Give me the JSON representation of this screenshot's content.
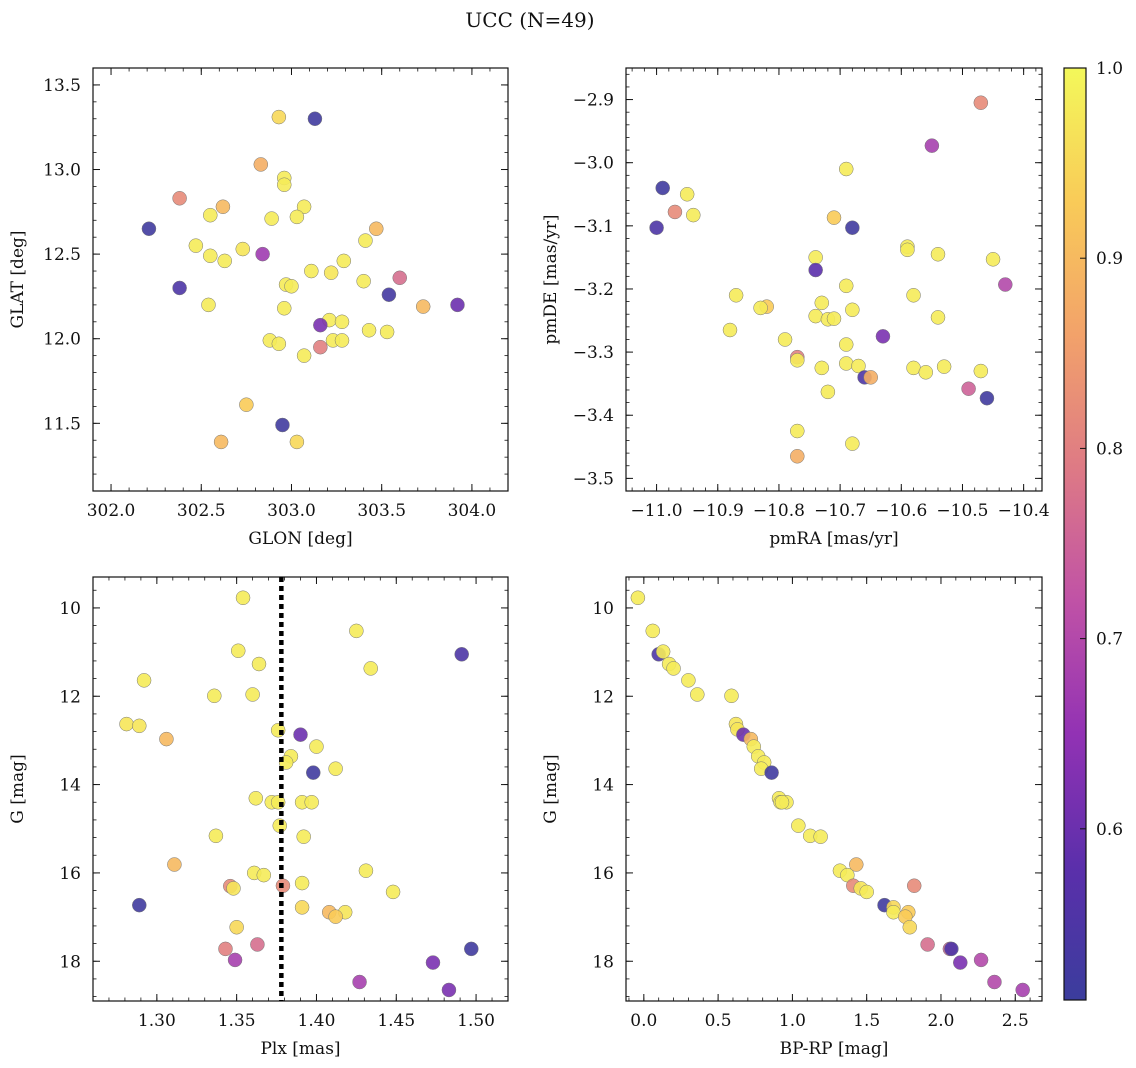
{
  "figure": {
    "title": "UCC (N=49)"
  },
  "colorbar": {
    "min": 0.51,
    "max": 1.0,
    "ticks": [
      "0.6",
      "0.7",
      "0.8",
      "0.9",
      "1.0"
    ],
    "tick_values": [
      0.6,
      0.7,
      0.8,
      0.9,
      1.0
    ],
    "colormap": "plasma",
    "colormap_stops": [
      "#3b3d9d",
      "#5b2fab",
      "#9232b4",
      "#c052a6",
      "#de7a85",
      "#f2a26a",
      "#f9cb58",
      "#f3f85a"
    ]
  },
  "chart_data": [
    {
      "type": "scatter",
      "title": "",
      "xlabel": "GLON [deg]",
      "ylabel": "GLAT [deg]",
      "xlim": [
        301.9,
        304.2
      ],
      "ylim": [
        11.1,
        13.6
      ],
      "y_inverted": false,
      "xticks": [
        302.0,
        302.5,
        303.0,
        303.5,
        304.0
      ],
      "xtick_labels": [
        "302.0",
        "302.5",
        "303.0",
        "303.5",
        "304.0"
      ],
      "yticks": [
        11.5,
        12.0,
        12.5,
        13.0,
        13.5
      ],
      "ytick_labels": [
        "11.5",
        "12.0",
        "12.5",
        "13.0",
        "13.5"
      ],
      "points": [
        {
          "x": 302.93,
          "y": 13.31,
          "c": 0.95
        },
        {
          "x": 303.13,
          "y": 13.3,
          "c": 0.52
        },
        {
          "x": 302.83,
          "y": 13.03,
          "c": 0.88
        },
        {
          "x": 302.96,
          "y": 12.95,
          "c": 0.98
        },
        {
          "x": 302.96,
          "y": 12.91,
          "c": 0.98
        },
        {
          "x": 302.38,
          "y": 12.83,
          "c": 0.82
        },
        {
          "x": 302.62,
          "y": 12.78,
          "c": 0.9
        },
        {
          "x": 303.07,
          "y": 12.78,
          "c": 0.98
        },
        {
          "x": 302.55,
          "y": 12.73,
          "c": 0.98
        },
        {
          "x": 302.89,
          "y": 12.71,
          "c": 0.98
        },
        {
          "x": 303.03,
          "y": 12.72,
          "c": 0.98
        },
        {
          "x": 302.21,
          "y": 12.65,
          "c": 0.52
        },
        {
          "x": 303.47,
          "y": 12.65,
          "c": 0.9
        },
        {
          "x": 302.47,
          "y": 12.55,
          "c": 0.98
        },
        {
          "x": 302.73,
          "y": 12.53,
          "c": 0.97
        },
        {
          "x": 303.41,
          "y": 12.58,
          "c": 0.98
        },
        {
          "x": 302.55,
          "y": 12.49,
          "c": 0.98
        },
        {
          "x": 302.63,
          "y": 12.46,
          "c": 0.98
        },
        {
          "x": 302.84,
          "y": 12.5,
          "c": 0.67
        },
        {
          "x": 303.29,
          "y": 12.46,
          "c": 0.98
        },
        {
          "x": 303.11,
          "y": 12.4,
          "c": 0.98
        },
        {
          "x": 303.22,
          "y": 12.39,
          "c": 0.97
        },
        {
          "x": 302.38,
          "y": 12.3,
          "c": 0.55
        },
        {
          "x": 302.97,
          "y": 12.32,
          "c": 0.98
        },
        {
          "x": 303.0,
          "y": 12.31,
          "c": 0.98
        },
        {
          "x": 303.4,
          "y": 12.34,
          "c": 0.98
        },
        {
          "x": 303.6,
          "y": 12.36,
          "c": 0.77
        },
        {
          "x": 303.54,
          "y": 12.26,
          "c": 0.53
        },
        {
          "x": 303.92,
          "y": 12.2,
          "c": 0.6
        },
        {
          "x": 303.73,
          "y": 12.19,
          "c": 0.9
        },
        {
          "x": 302.54,
          "y": 12.2,
          "c": 0.98
        },
        {
          "x": 302.96,
          "y": 12.18,
          "c": 0.98
        },
        {
          "x": 303.21,
          "y": 12.11,
          "c": 0.98
        },
        {
          "x": 303.16,
          "y": 12.08,
          "c": 0.62
        },
        {
          "x": 303.28,
          "y": 12.1,
          "c": 0.98
        },
        {
          "x": 303.43,
          "y": 12.05,
          "c": 0.98
        },
        {
          "x": 303.53,
          "y": 12.04,
          "c": 0.98
        },
        {
          "x": 302.88,
          "y": 11.99,
          "c": 0.98
        },
        {
          "x": 302.93,
          "y": 11.97,
          "c": 0.98
        },
        {
          "x": 303.23,
          "y": 11.99,
          "c": 0.98
        },
        {
          "x": 303.28,
          "y": 11.99,
          "c": 0.98
        },
        {
          "x": 303.16,
          "y": 11.95,
          "c": 0.8
        },
        {
          "x": 303.07,
          "y": 11.9,
          "c": 0.98
        },
        {
          "x": 302.75,
          "y": 11.61,
          "c": 0.93
        },
        {
          "x": 302.95,
          "y": 11.49,
          "c": 0.52
        },
        {
          "x": 302.61,
          "y": 11.39,
          "c": 0.9
        },
        {
          "x": 303.03,
          "y": 11.39,
          "c": 0.95
        }
      ]
    },
    {
      "type": "scatter",
      "title": "",
      "xlabel": "pmRA [mas/yr]",
      "ylabel": "pmDE [mas/yr]",
      "xlim": [
        -11.05,
        -10.37
      ],
      "ylim": [
        -3.52,
        -2.85
      ],
      "y_inverted": false,
      "xticks": [
        -11.0,
        -10.9,
        -10.8,
        -10.7,
        -10.6,
        -10.5,
        -10.4
      ],
      "xtick_labels": [
        "−11.0",
        "−10.9",
        "−10.8",
        "−10.7",
        "−10.6",
        "−10.5",
        "−10.4"
      ],
      "yticks": [
        -3.5,
        -3.4,
        -3.3,
        -3.2,
        -3.1,
        -3.0,
        -2.9
      ],
      "ytick_labels": [
        "−3.5",
        "−3.4",
        "−3.3",
        "−3.2",
        "−3.1",
        "−3.0",
        "−2.9"
      ],
      "points": [
        {
          "x": -10.47,
          "y": -2.905,
          "c": 0.82
        },
        {
          "x": -10.55,
          "y": -2.973,
          "c": 0.68
        },
        {
          "x": -10.69,
          "y": -3.01,
          "c": 0.98
        },
        {
          "x": -10.99,
          "y": -3.04,
          "c": 0.52
        },
        {
          "x": -10.95,
          "y": -3.05,
          "c": 0.98
        },
        {
          "x": -10.97,
          "y": -3.078,
          "c": 0.82
        },
        {
          "x": -10.94,
          "y": -3.083,
          "c": 0.98
        },
        {
          "x": -10.71,
          "y": -3.087,
          "c": 0.93
        },
        {
          "x": -11.0,
          "y": -3.103,
          "c": 0.55
        },
        {
          "x": -10.68,
          "y": -3.103,
          "c": 0.52
        },
        {
          "x": -10.59,
          "y": -3.133,
          "c": 0.98
        },
        {
          "x": -10.59,
          "y": -3.138,
          "c": 0.98
        },
        {
          "x": -10.54,
          "y": -3.145,
          "c": 0.98
        },
        {
          "x": -10.74,
          "y": -3.15,
          "c": 0.98
        },
        {
          "x": -10.45,
          "y": -3.153,
          "c": 0.98
        },
        {
          "x": -10.74,
          "y": -3.17,
          "c": 0.58
        },
        {
          "x": -10.43,
          "y": -3.193,
          "c": 0.7
        },
        {
          "x": -10.69,
          "y": -3.195,
          "c": 0.98
        },
        {
          "x": -10.87,
          "y": -3.21,
          "c": 0.98
        },
        {
          "x": -10.58,
          "y": -3.21,
          "c": 0.98
        },
        {
          "x": -10.73,
          "y": -3.222,
          "c": 0.98
        },
        {
          "x": -10.82,
          "y": -3.228,
          "c": 0.93
        },
        {
          "x": -10.83,
          "y": -3.23,
          "c": 0.98
        },
        {
          "x": -10.68,
          "y": -3.233,
          "c": 0.98
        },
        {
          "x": -10.74,
          "y": -3.243,
          "c": 0.98
        },
        {
          "x": -10.54,
          "y": -3.245,
          "c": 0.98
        },
        {
          "x": -10.72,
          "y": -3.248,
          "c": 0.98
        },
        {
          "x": -10.71,
          "y": -3.247,
          "c": 0.98
        },
        {
          "x": -10.88,
          "y": -3.265,
          "c": 0.98
        },
        {
          "x": -10.63,
          "y": -3.275,
          "c": 0.62
        },
        {
          "x": -10.79,
          "y": -3.28,
          "c": 0.98
        },
        {
          "x": -10.69,
          "y": -3.288,
          "c": 0.98
        },
        {
          "x": -10.77,
          "y": -3.308,
          "c": 0.8
        },
        {
          "x": -10.77,
          "y": -3.313,
          "c": 0.98
        },
        {
          "x": -10.69,
          "y": -3.318,
          "c": 0.98
        },
        {
          "x": -10.67,
          "y": -3.322,
          "c": 0.98
        },
        {
          "x": -10.73,
          "y": -3.325,
          "c": 0.98
        },
        {
          "x": -10.58,
          "y": -3.325,
          "c": 0.98
        },
        {
          "x": -10.53,
          "y": -3.323,
          "c": 0.98
        },
        {
          "x": -10.56,
          "y": -3.332,
          "c": 0.98
        },
        {
          "x": -10.47,
          "y": -3.33,
          "c": 0.98
        },
        {
          "x": -10.66,
          "y": -3.34,
          "c": 0.55
        },
        {
          "x": -10.65,
          "y": -3.34,
          "c": 0.88
        },
        {
          "x": -10.49,
          "y": -3.358,
          "c": 0.75
        },
        {
          "x": -10.72,
          "y": -3.363,
          "c": 0.98
        },
        {
          "x": -10.46,
          "y": -3.373,
          "c": 0.52
        },
        {
          "x": -10.77,
          "y": -3.425,
          "c": 0.98
        },
        {
          "x": -10.68,
          "y": -3.445,
          "c": 0.98
        },
        {
          "x": -10.77,
          "y": -3.465,
          "c": 0.88
        }
      ]
    },
    {
      "type": "scatter",
      "title": "",
      "xlabel": "Plx [mas]",
      "ylabel": "G [mag]",
      "xlim": [
        1.26,
        1.52
      ],
      "ylim": [
        9.3,
        18.9
      ],
      "y_inverted": true,
      "vline": 1.378,
      "xticks": [
        1.3,
        1.35,
        1.4,
        1.45,
        1.5
      ],
      "xtick_labels": [
        "1.30",
        "1.35",
        "1.40",
        "1.45",
        "1.50"
      ],
      "yticks": [
        10,
        12,
        14,
        16,
        18
      ],
      "ytick_labels": [
        "10",
        "12",
        "14",
        "16",
        "18"
      ],
      "points": [
        {
          "x": 1.354,
          "y": 9.77,
          "c": 0.98
        },
        {
          "x": 1.425,
          "y": 10.52,
          "c": 0.98
        },
        {
          "x": 1.351,
          "y": 10.97,
          "c": 0.98
        },
        {
          "x": 1.491,
          "y": 11.05,
          "c": 0.55
        },
        {
          "x": 1.364,
          "y": 11.27,
          "c": 0.98
        },
        {
          "x": 1.434,
          "y": 11.37,
          "c": 0.98
        },
        {
          "x": 1.292,
          "y": 11.64,
          "c": 0.98
        },
        {
          "x": 1.336,
          "y": 11.99,
          "c": 0.98
        },
        {
          "x": 1.36,
          "y": 11.96,
          "c": 0.98
        },
        {
          "x": 1.281,
          "y": 12.63,
          "c": 0.97
        },
        {
          "x": 1.289,
          "y": 12.67,
          "c": 0.97
        },
        {
          "x": 1.376,
          "y": 12.77,
          "c": 0.98
        },
        {
          "x": 1.39,
          "y": 12.87,
          "c": 0.6
        },
        {
          "x": 1.306,
          "y": 12.97,
          "c": 0.9
        },
        {
          "x": 1.4,
          "y": 13.14,
          "c": 0.98
        },
        {
          "x": 1.384,
          "y": 13.36,
          "c": 0.98
        },
        {
          "x": 1.381,
          "y": 13.5,
          "c": 0.98
        },
        {
          "x": 1.412,
          "y": 13.64,
          "c": 0.98
        },
        {
          "x": 1.398,
          "y": 13.73,
          "c": 0.52
        },
        {
          "x": 1.362,
          "y": 14.31,
          "c": 0.98
        },
        {
          "x": 1.372,
          "y": 14.4,
          "c": 0.98
        },
        {
          "x": 1.376,
          "y": 14.4,
          "c": 0.98
        },
        {
          "x": 1.391,
          "y": 14.4,
          "c": 0.98
        },
        {
          "x": 1.397,
          "y": 14.4,
          "c": 0.98
        },
        {
          "x": 1.377,
          "y": 14.93,
          "c": 0.98
        },
        {
          "x": 1.337,
          "y": 15.16,
          "c": 0.98
        },
        {
          "x": 1.392,
          "y": 15.18,
          "c": 0.98
        },
        {
          "x": 1.311,
          "y": 15.81,
          "c": 0.9
        },
        {
          "x": 1.431,
          "y": 15.95,
          "c": 0.98
        },
        {
          "x": 1.361,
          "y": 16.0,
          "c": 0.98
        },
        {
          "x": 1.367,
          "y": 16.05,
          "c": 0.98
        },
        {
          "x": 1.391,
          "y": 16.23,
          "c": 0.98
        },
        {
          "x": 1.379,
          "y": 16.29,
          "c": 0.82
        },
        {
          "x": 1.346,
          "y": 16.3,
          "c": 0.82
        },
        {
          "x": 1.348,
          "y": 16.35,
          "c": 0.97
        },
        {
          "x": 1.448,
          "y": 16.43,
          "c": 0.98
        },
        {
          "x": 1.289,
          "y": 16.73,
          "c": 0.52
        },
        {
          "x": 1.391,
          "y": 16.78,
          "c": 0.95
        },
        {
          "x": 1.408,
          "y": 16.89,
          "c": 0.9
        },
        {
          "x": 1.418,
          "y": 16.89,
          "c": 0.97
        },
        {
          "x": 1.412,
          "y": 16.99,
          "c": 0.93
        },
        {
          "x": 1.35,
          "y": 17.23,
          "c": 0.95
        },
        {
          "x": 1.363,
          "y": 17.62,
          "c": 0.77
        },
        {
          "x": 1.343,
          "y": 17.72,
          "c": 0.8
        },
        {
          "x": 1.497,
          "y": 17.72,
          "c": 0.52
        },
        {
          "x": 1.349,
          "y": 17.97,
          "c": 0.68
        },
        {
          "x": 1.473,
          "y": 18.03,
          "c": 0.62
        },
        {
          "x": 1.427,
          "y": 18.47,
          "c": 0.68
        },
        {
          "x": 1.483,
          "y": 18.65,
          "c": 0.62
        }
      ]
    },
    {
      "type": "scatter",
      "title": "",
      "xlabel": "BP-RP [mag]",
      "ylabel": "G [mag]",
      "xlim": [
        -0.12,
        2.68
      ],
      "ylim": [
        9.3,
        18.9
      ],
      "y_inverted": true,
      "xticks": [
        0.0,
        0.5,
        1.0,
        1.5,
        2.0,
        2.5
      ],
      "xtick_labels": [
        "0.0",
        "0.5",
        "1.0",
        "1.5",
        "2.0",
        "2.5"
      ],
      "yticks": [
        10,
        12,
        14,
        16,
        18
      ],
      "ytick_labels": [
        "10",
        "12",
        "14",
        "16",
        "18"
      ],
      "points": [
        {
          "x": -0.04,
          "y": 9.77,
          "c": 0.98
        },
        {
          "x": 0.06,
          "y": 10.52,
          "c": 0.98
        },
        {
          "x": 0.1,
          "y": 11.05,
          "c": 0.55
        },
        {
          "x": 0.13,
          "y": 10.99,
          "c": 0.98
        },
        {
          "x": 0.17,
          "y": 11.27,
          "c": 0.98
        },
        {
          "x": 0.2,
          "y": 11.37,
          "c": 0.98
        },
        {
          "x": 0.3,
          "y": 11.64,
          "c": 0.98
        },
        {
          "x": 0.36,
          "y": 11.96,
          "c": 0.98
        },
        {
          "x": 0.59,
          "y": 11.99,
          "c": 0.98
        },
        {
          "x": 0.62,
          "y": 12.63,
          "c": 0.97
        },
        {
          "x": 0.63,
          "y": 12.75,
          "c": 0.97
        },
        {
          "x": 0.67,
          "y": 12.87,
          "c": 0.6
        },
        {
          "x": 0.72,
          "y": 12.97,
          "c": 0.9
        },
        {
          "x": 0.74,
          "y": 13.14,
          "c": 0.98
        },
        {
          "x": 0.77,
          "y": 13.36,
          "c": 0.98
        },
        {
          "x": 0.81,
          "y": 13.5,
          "c": 0.98
        },
        {
          "x": 0.79,
          "y": 13.64,
          "c": 0.98
        },
        {
          "x": 0.86,
          "y": 13.73,
          "c": 0.52
        },
        {
          "x": 0.91,
          "y": 14.31,
          "c": 0.98
        },
        {
          "x": 0.92,
          "y": 14.4,
          "c": 0.98
        },
        {
          "x": 0.96,
          "y": 14.4,
          "c": 0.98
        },
        {
          "x": 0.93,
          "y": 14.4,
          "c": 0.98
        },
        {
          "x": 1.04,
          "y": 14.93,
          "c": 0.98
        },
        {
          "x": 1.12,
          "y": 15.16,
          "c": 0.98
        },
        {
          "x": 1.19,
          "y": 15.18,
          "c": 0.98
        },
        {
          "x": 1.43,
          "y": 15.81,
          "c": 0.9
        },
        {
          "x": 1.32,
          "y": 15.95,
          "c": 0.98
        },
        {
          "x": 1.37,
          "y": 16.05,
          "c": 0.98
        },
        {
          "x": 1.41,
          "y": 16.29,
          "c": 0.82
        },
        {
          "x": 1.82,
          "y": 16.29,
          "c": 0.82
        },
        {
          "x": 1.46,
          "y": 16.35,
          "c": 0.97
        },
        {
          "x": 1.5,
          "y": 16.43,
          "c": 0.98
        },
        {
          "x": 1.62,
          "y": 16.73,
          "c": 0.52
        },
        {
          "x": 1.68,
          "y": 16.78,
          "c": 0.95
        },
        {
          "x": 1.68,
          "y": 16.89,
          "c": 0.98
        },
        {
          "x": 1.78,
          "y": 16.89,
          "c": 0.93
        },
        {
          "x": 1.76,
          "y": 16.99,
          "c": 0.93
        },
        {
          "x": 1.79,
          "y": 17.23,
          "c": 0.95
        },
        {
          "x": 1.91,
          "y": 17.62,
          "c": 0.77
        },
        {
          "x": 2.06,
          "y": 17.72,
          "c": 0.75
        },
        {
          "x": 2.07,
          "y": 17.72,
          "c": 0.55
        },
        {
          "x": 2.13,
          "y": 18.03,
          "c": 0.62
        },
        {
          "x": 2.27,
          "y": 17.97,
          "c": 0.7
        },
        {
          "x": 2.36,
          "y": 18.47,
          "c": 0.7
        },
        {
          "x": 2.55,
          "y": 18.65,
          "c": 0.68
        }
      ]
    }
  ]
}
